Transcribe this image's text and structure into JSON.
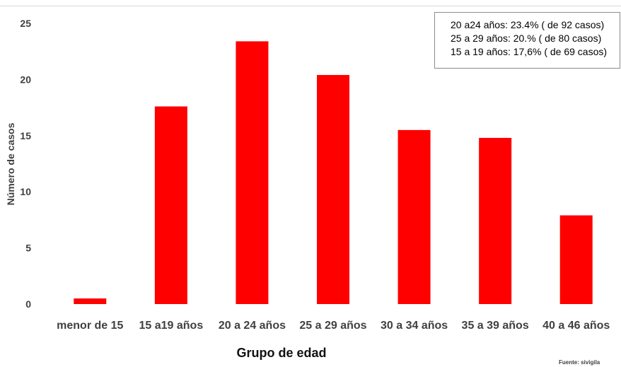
{
  "chart_data": {
    "type": "bar",
    "categories": [
      "menor de 15",
      "15 a19 años",
      "20 a 24 años",
      "25 a 29 años",
      "30 a 34 años",
      "35 a 39 años",
      "40 a 46 años"
    ],
    "values": [
      0.5,
      17.6,
      23.4,
      20.4,
      15.5,
      14.8,
      7.9
    ],
    "xlabel": "Grupo de edad",
    "ylabel": "Número de casos",
    "ylim": [
      0,
      25
    ],
    "yticks": [
      0,
      5,
      10,
      15,
      20,
      25
    ],
    "grid": false,
    "bar_color": "#ff0000",
    "legend_placement": "top-right",
    "annotation_lines": [
      "20 a24 años: 23.4% ( de 92 casos)",
      "25 a 29 años: 20.% ( de 80 casos)",
      "15 a 19 años: 17,6% ( de 69 casos)"
    ]
  },
  "source_note": "Fuente: sivigila"
}
